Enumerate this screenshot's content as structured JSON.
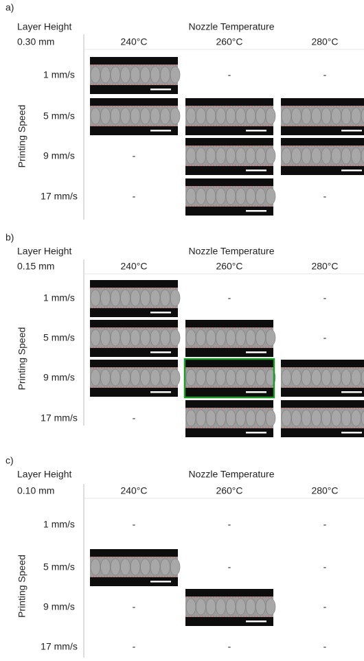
{
  "panels": [
    {
      "label": "a)",
      "layer_height_title": "Layer Height",
      "layer_height": "0.30 mm",
      "temperature_title": "Nozzle Temperature",
      "speed_title": "Printing Speed",
      "temperatures": [
        "240°C",
        "260°C",
        "280°C"
      ],
      "rows": [
        {
          "speed": "1 mm/s",
          "cells": [
            null,
            "-",
            "-"
          ]
        },
        {
          "speed": "5 mm/s",
          "cells": [
            null,
            null,
            null
          ]
        },
        {
          "speed": "9 mm/s",
          "cells": [
            "-",
            null,
            null
          ]
        },
        {
          "speed": "17 mm/s",
          "cells": [
            "-",
            null,
            "-"
          ]
        }
      ]
    },
    {
      "label": "b)",
      "layer_height_title": "Layer Height",
      "layer_height": "0.15 mm",
      "temperature_title": "Nozzle Temperature",
      "speed_title": "Printing Speed",
      "temperatures": [
        "240°C",
        "260°C",
        "280°C"
      ],
      "rows": [
        {
          "speed": "1 mm/s",
          "cells": [
            null,
            "-",
            "-"
          ]
        },
        {
          "speed": "5 mm/s",
          "cells": [
            null,
            null,
            "-"
          ]
        },
        {
          "speed": "9 mm/s",
          "cells": [
            null,
            null,
            null
          ]
        },
        {
          "speed": "17 mm/s",
          "cells": [
            "-",
            null,
            null
          ]
        }
      ]
    },
    {
      "label": "c)",
      "layer_height_title": "Layer Height",
      "layer_height": "0.10 mm",
      "temperature_title": "Nozzle Temperature",
      "speed_title": "Printing Speed",
      "temperatures": [
        "240°C",
        "260°C",
        "280°C"
      ],
      "rows": [
        {
          "speed": "1 mm/s",
          "cells": [
            "-",
            "-",
            "-"
          ]
        },
        {
          "speed": "5 mm/s",
          "cells": [
            null,
            "-",
            "-"
          ]
        },
        {
          "speed": "9 mm/s",
          "cells": [
            "-",
            null,
            "-"
          ]
        },
        {
          "speed": "17 mm/s",
          "cells": [
            "-",
            "-",
            "-"
          ]
        }
      ]
    }
  ]
}
